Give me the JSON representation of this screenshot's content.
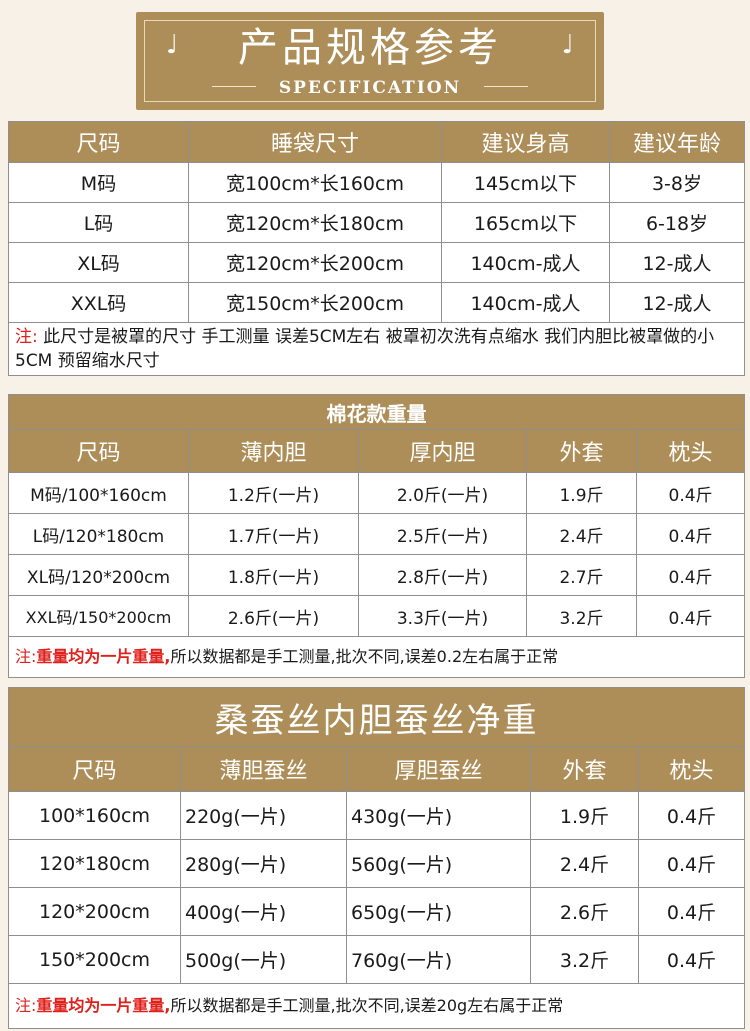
{
  "banner": {
    "title": "产品规格参考",
    "subtitle": "SPECIFICATION",
    "note_glyph": "♩"
  },
  "size_table": {
    "headers": [
      "尺码",
      "睡袋尺寸",
      "建议身高",
      "建议年龄"
    ],
    "rows": [
      [
        "M码",
        "宽100cm*长160cm",
        "145cm以下",
        "3-8岁"
      ],
      [
        "L码",
        "宽120cm*长180cm",
        "165cm以下",
        "6-18岁"
      ],
      [
        "XL码",
        "宽120cm*长200cm",
        "140cm-成人",
        "12-成人"
      ],
      [
        "XXL码",
        "宽150cm*长200cm",
        "140cm-成人",
        "12-成人"
      ]
    ],
    "note_label": "注:",
    "note_text": " 此尺寸是被罩的尺寸 手工测量 误差5CM左右 被罩初次洗有点缩水 我们内胆比被罩做的小5CM 预留缩水尺寸"
  },
  "cotton_table": {
    "caption": "棉花款重量",
    "headers": [
      "尺码",
      "薄内胆",
      "厚内胆",
      "外套",
      "枕头"
    ],
    "rows": [
      [
        "M码/100*160cm",
        "1.2斤(一片)",
        "2.0斤(一片)",
        "1.9斤",
        "0.4斤"
      ],
      [
        "L码/120*180cm",
        "1.7斤(一片)",
        "2.5斤(一片)",
        "2.4斤",
        "0.4斤"
      ],
      [
        "XL码/120*200cm",
        "1.8斤(一片)",
        "2.8斤(一片)",
        "2.7斤",
        "0.4斤"
      ],
      [
        "XXL码/150*200cm",
        "2.6斤(一片)",
        "3.3斤(一片)",
        "3.2斤",
        "0.4斤"
      ]
    ],
    "note_label": "注:",
    "note_red": "重量均为一片重量,",
    "note_text": "所以数据都是手工测量,批次不同,误差0.2左右属于正常"
  },
  "silk_table": {
    "caption": "桑蚕丝内胆蚕丝净重",
    "headers": [
      "尺码",
      "薄胆蚕丝",
      "厚胆蚕丝",
      "外套",
      "枕头"
    ],
    "rows": [
      [
        "100*160cm",
        "220g(一片)",
        "430g(一片)",
        "1.9斤",
        "0.4斤"
      ],
      [
        "120*180cm",
        "280g(一片)",
        "560g(一片)",
        "2.4斤",
        "0.4斤"
      ],
      [
        "120*200cm",
        "400g(一片)",
        "650g(一片)",
        "2.6斤",
        "0.4斤"
      ],
      [
        "150*200cm",
        "500g(一片)",
        "760g(一片)",
        "3.2斤",
        "0.4斤"
      ]
    ],
    "note_label": "注:",
    "note_red": "重量均为一片重量,",
    "note_text": "所以数据都是手工测量,批次不同,误差20g左右属于正常"
  },
  "colors": {
    "accent": "#ad8e59",
    "background": "#f7f1e8",
    "note_red": "#e0201b"
  }
}
